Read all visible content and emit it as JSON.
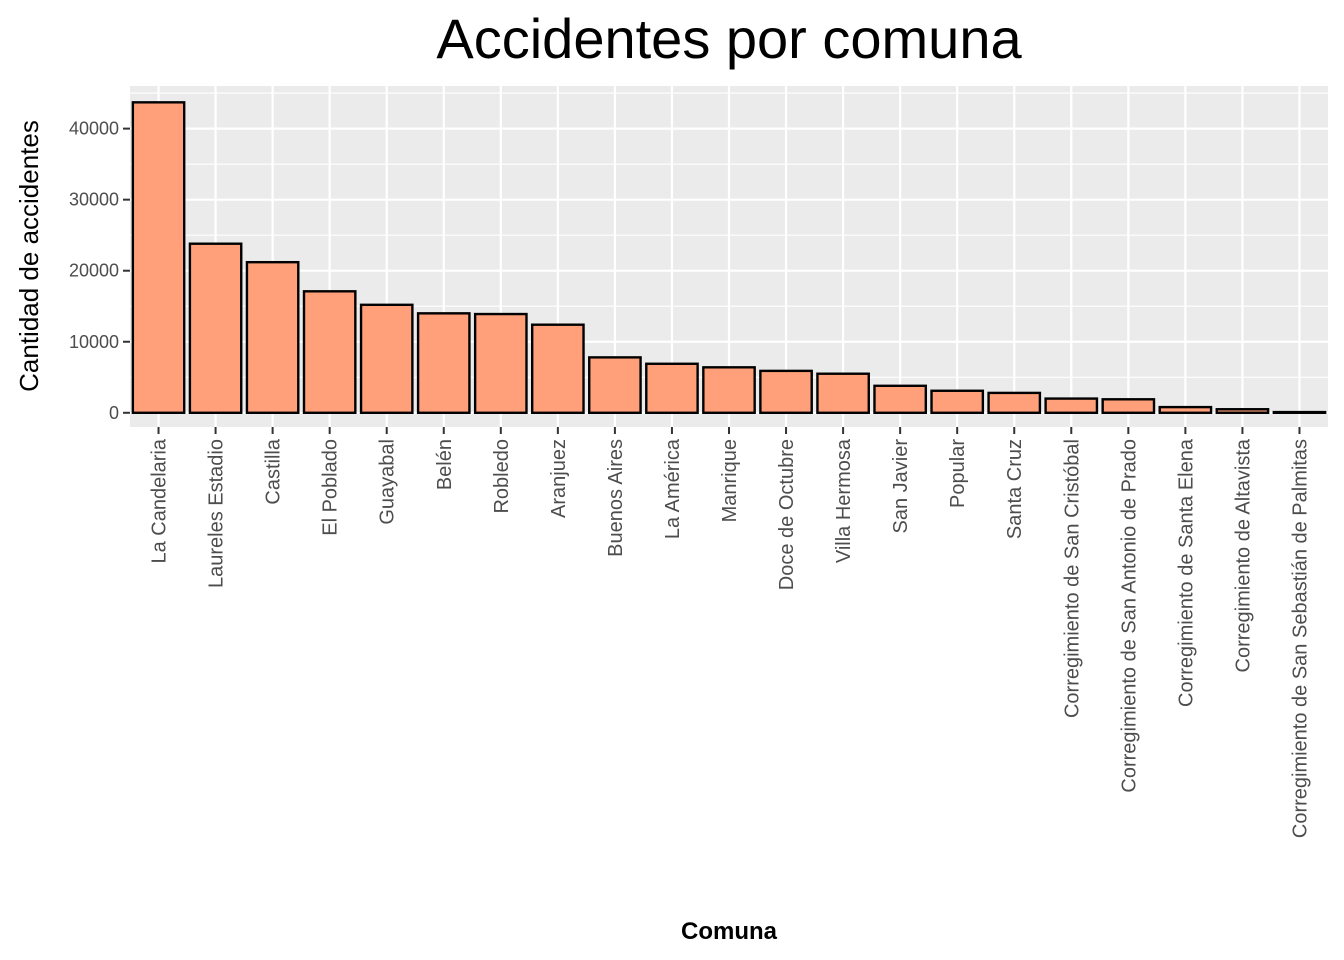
{
  "chart_data": {
    "type": "bar",
    "title": "Accidentes por comuna",
    "xlabel": "Comuna",
    "ylabel": "Cantidad de accidentes",
    "ylim": [
      -2000,
      46000
    ],
    "yticks": [
      0,
      10000,
      20000,
      30000,
      40000
    ],
    "ytick_labels": [
      "0",
      "10000",
      "20000",
      "30000",
      "40000"
    ],
    "grid": true,
    "bar_fill": "#FFA07A",
    "bar_stroke": "#000000",
    "panel_background": "#EBEBEB",
    "grid_color": "#FFFFFF",
    "categories": [
      "La Candelaria",
      "Laureles Estadio",
      "Castilla",
      "El Poblado",
      "Guayabal",
      "Belén",
      "Robledo",
      "Aranjuez",
      "Buenos Aires",
      "La América",
      "Manrique",
      "Doce de Octubre",
      "Villa Hermosa",
      "San Javier",
      "Popular",
      "Santa Cruz",
      "Corregimiento de San Cristóbal",
      "Corregimiento de San Antonio de Prado",
      "Corregimiento de Santa Elena",
      "Corregimiento de Altavista",
      "Corregimiento de San Sebastián de Palmitas"
    ],
    "values": [
      43700,
      23800,
      21200,
      17100,
      15200,
      14000,
      13900,
      12400,
      7800,
      6900,
      6400,
      5900,
      5500,
      3800,
      3100,
      2800,
      2000,
      1900,
      800,
      500,
      100
    ]
  }
}
